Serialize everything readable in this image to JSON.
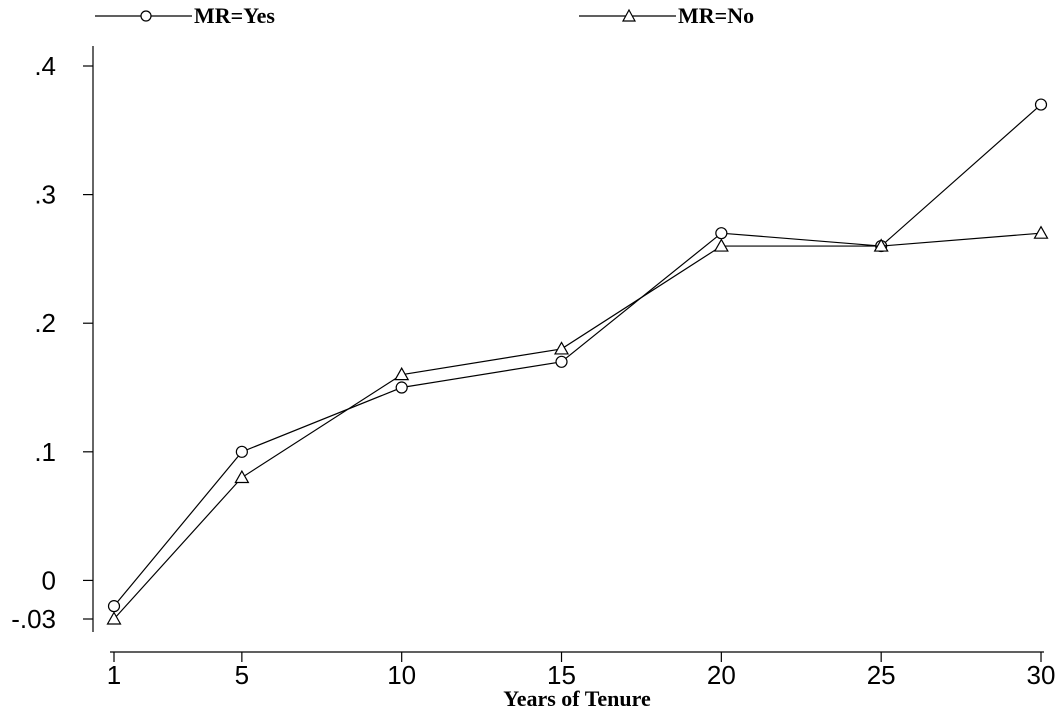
{
  "chart_data": {
    "type": "line",
    "title": "",
    "xlabel": "Years of Tenure",
    "ylabel": "",
    "x": [
      1,
      5,
      10,
      15,
      20,
      25,
      30
    ],
    "xlim": [
      1,
      30
    ],
    "ylim": [
      -0.03,
      0.4
    ],
    "x_ticks": [
      {
        "value": 1,
        "label": "1"
      },
      {
        "value": 5,
        "label": "5"
      },
      {
        "value": 10,
        "label": "10"
      },
      {
        "value": 15,
        "label": "15"
      },
      {
        "value": 20,
        "label": "20"
      },
      {
        "value": 25,
        "label": "25"
      },
      {
        "value": 30,
        "label": "30"
      }
    ],
    "y_ticks": [
      {
        "value": -0.03,
        "label": "-.03"
      },
      {
        "value": 0,
        "label": "0"
      },
      {
        "value": 0.1,
        "label": ".1"
      },
      {
        "value": 0.2,
        "label": ".2"
      },
      {
        "value": 0.3,
        "label": ".3"
      },
      {
        "value": 0.4,
        "label": ".4"
      }
    ],
    "grid": false,
    "legend_position": "top",
    "series": [
      {
        "name": "MR=Yes",
        "marker": "circle",
        "values": [
          -0.02,
          0.1,
          0.15,
          0.17,
          0.27,
          0.26,
          0.37
        ]
      },
      {
        "name": "MR=No",
        "marker": "triangle",
        "values": [
          -0.03,
          0.08,
          0.16,
          0.18,
          0.26,
          0.26,
          0.27
        ]
      }
    ]
  }
}
